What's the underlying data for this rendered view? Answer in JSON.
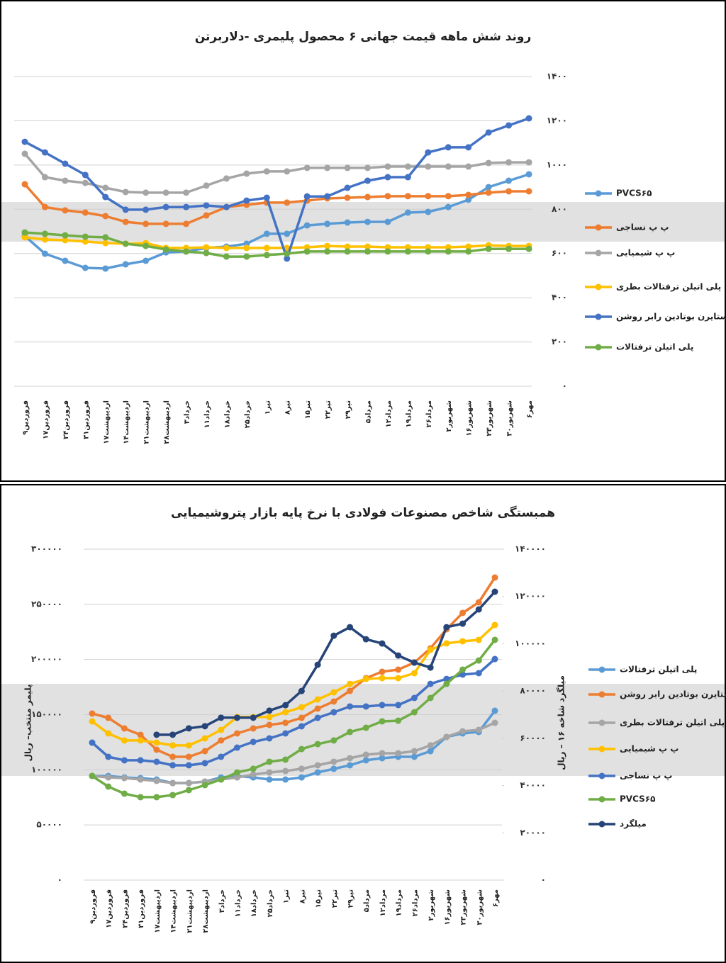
{
  "chart_data": [
    {
      "type": "line",
      "title": "روند شش ماهه قیمت جهانی ۶ محصول پلیمری -دلاربرتن",
      "categories": [
        "۹فروردین",
        "۱۷فروردین",
        "۲۴فروردین",
        "۳۱فروردین",
        "۱۷اردیبهشت",
        "۱۴اردیبهشت",
        "۲۱اردیبهشت",
        "۲۸اردیبهشت",
        "۳خرداد",
        "۱۱خرداد",
        "۱۸خرداد",
        "۲۵خرداد",
        "۱تیر",
        "۸تیر",
        "۱۵تیر",
        "۲۲تیر",
        "۲۹تیر",
        "۵مرداد",
        "۱۲مرداد",
        "۱۹مرداد",
        "۲۶مرداد",
        "۲شهریور",
        "۱۶شهریور",
        "۲۳شهریور",
        "۳۰شهریور",
        "۶مهر"
      ],
      "series": [
        {
          "name": "PVCS۶۵",
          "color": "#5b9bd5",
          "values": [
            679,
            599,
            567,
            535,
            532,
            551,
            567,
            605,
            609,
            625,
            631,
            644,
            689,
            689,
            727,
            734,
            740,
            743,
            743,
            785,
            788,
            810,
            843,
            900,
            929,
            958
          ]
        },
        {
          "name": "پ پ نساجی",
          "color": "#ed7d31",
          "values": [
            913,
            810,
            795,
            785,
            769,
            743,
            734,
            734,
            734,
            772,
            810,
            820,
            830,
            830,
            839,
            849,
            852,
            855,
            859,
            859,
            859,
            859,
            865,
            875,
            881,
            881
          ]
        },
        {
          "name": "پ پ شیمیایی",
          "color": "#a5a5a5",
          "values": [
            1051,
            945,
            929,
            919,
            897,
            878,
            875,
            875,
            875,
            907,
            939,
            961,
            971,
            971,
            987,
            987,
            987,
            987,
            993,
            993,
            993,
            993,
            993,
            1009,
            1012,
            1012
          ]
        },
        {
          "name": "پلی اتیلن ترفتالات بطری",
          "color": "#ffc000",
          "values": [
            673,
            663,
            660,
            654,
            647,
            644,
            647,
            625,
            625,
            628,
            625,
            625,
            625,
            625,
            628,
            634,
            631,
            631,
            628,
            628,
            628,
            628,
            631,
            637,
            634,
            634
          ]
        },
        {
          "name": "استایرن بوتادین رابر روشن",
          "color": "#4472c4",
          "values": [
            1105,
            1057,
            1006,
            955,
            855,
            798,
            798,
            810,
            810,
            817,
            810,
            839,
            852,
            577,
            858,
            858,
            897,
            929,
            945,
            945,
            1057,
            1080,
            1080,
            1147,
            1179,
            1211
          ]
        },
        {
          "name": "پلی اتیلن ترفتالات",
          "color": "#70ad47",
          "values": [
            695,
            689,
            682,
            676,
            673,
            644,
            634,
            618,
            609,
            602,
            586,
            586,
            593,
            599,
            609,
            609,
            609,
            609,
            609,
            609,
            609,
            609,
            609,
            621,
            621,
            621
          ]
        }
      ],
      "ylim": [
        0,
        1400
      ],
      "yticks": [
        {
          "value": 0,
          "label": "۰"
        },
        {
          "value": 200,
          "label": "۲۰۰"
        },
        {
          "value": 400,
          "label": "۴۰۰"
        },
        {
          "value": 600,
          "label": "۶۰۰"
        },
        {
          "value": 800,
          "label": "۸۰۰"
        },
        {
          "value": 1000,
          "label": "۱۰۰۰"
        },
        {
          "value": 1200,
          "label": "۱۲۰۰"
        },
        {
          "value": 1400,
          "label": "۱۴۰۰"
        }
      ],
      "grid": true
    },
    {
      "type": "line",
      "title": "همبستگی شاخص مصنوعات فولادی با نرخ پایه بازار پتروشیمیایی",
      "ylabel": "پلیمر منتخب– ریال",
      "y2label": "میلگرد شاخه ۱۶ – ریال",
      "categories": [
        "۹فروردین",
        "۱۷فروردین",
        "۲۴فروردین",
        "۳۱فروردین",
        "۱۷اردیبهشت",
        "۱۴اردیبهشت",
        "۲۱اردیبهشت",
        "۲۸اردیبهشت",
        "۳خرداد",
        "۱۱خرداد",
        "۱۸خرداد",
        "۲۵خرداد",
        "۱تیر",
        "۸تیر",
        "۱۵تیر",
        "۲۲تیر",
        "۲۹تیر",
        "۵مرداد",
        "۱۲مرداد",
        "۱۹مرداد",
        "۲۶مرداد",
        "۲شهریور",
        "۱۶شهریور",
        "۲۳شهریور",
        "۳۰شهریور",
        "۶مهر"
      ],
      "series": [
        {
          "name": "پلی اتیلن ترفتالات",
          "color": "#5b9bd5",
          "values": [
            94400,
            94400,
            93100,
            92500,
            91200,
            88000,
            88000,
            89300,
            93100,
            94400,
            93100,
            91200,
            91200,
            93100,
            97600,
            100900,
            104100,
            108600,
            110500,
            111800,
            111800,
            116900,
            129800,
            133000,
            134300,
            153500
          ]
        },
        {
          "name": "استایرن بوتادین رابر روشن",
          "color": "#ed7d31",
          "values": [
            151000,
            147100,
            137500,
            131700,
            118200,
            111800,
            111800,
            116900,
            126600,
            133000,
            137500,
            140700,
            142600,
            147100,
            155500,
            161900,
            171500,
            183100,
            188900,
            190800,
            197200,
            210100,
            227400,
            242200,
            251800,
            274300
          ]
        },
        {
          "name": "پلی اتیلن ترفتالات بطری",
          "color": "#a5a5a5",
          "values": [
            94400,
            93100,
            92500,
            91200,
            89900,
            88000,
            88000,
            89300,
            91200,
            93100,
            95700,
            97600,
            98900,
            100900,
            104100,
            107300,
            110500,
            113700,
            115000,
            115000,
            116900,
            122100,
            129800,
            134900,
            136200,
            142600
          ]
        },
        {
          "name": "پ پ شیمیایی",
          "color": "#ffc000",
          "values": [
            143900,
            133000,
            126600,
            126600,
            124600,
            122100,
            122100,
            128500,
            136200,
            147800,
            147800,
            147800,
            152200,
            156700,
            163800,
            170200,
            177900,
            182400,
            183100,
            183100,
            187600,
            208800,
            214600,
            216500,
            217800,
            231300
          ]
        },
        {
          "name": "پ پ نساجی",
          "color": "#4472c4",
          "values": [
            124600,
            111800,
            108600,
            108600,
            107300,
            104100,
            104100,
            106000,
            111800,
            120100,
            125300,
            128500,
            133000,
            139400,
            147100,
            152200,
            157400,
            157400,
            158700,
            158700,
            165100,
            177900,
            182400,
            186300,
            187600,
            200400
          ]
        },
        {
          "name": "PVCS۶۵",
          "color": "#70ad47",
          "values": [
            94400,
            84800,
            78400,
            75200,
            75200,
            77100,
            81600,
            86100,
            91200,
            97600,
            100900,
            107300,
            109200,
            118800,
            123300,
            126600,
            134300,
            138100,
            143900,
            144500,
            152200,
            165100,
            177900,
            190800,
            199100,
            217800
          ]
        },
        {
          "name": "میلگرد",
          "color": "#264478",
          "axis": "y2",
          "values": [
            null,
            null,
            null,
            null,
            61500,
            61500,
            64200,
            65100,
            68700,
            68700,
            68700,
            71700,
            74000,
            80000,
            91100,
            103400,
            107000,
            101900,
            100100,
            95000,
            92000,
            89900,
            107000,
            108500,
            114500,
            122000
          ]
        }
      ],
      "ylim": [
        0,
        300000
      ],
      "yticks": [
        {
          "value": 0,
          "label": "۰"
        },
        {
          "value": 50000,
          "label": "۵۰۰۰۰"
        },
        {
          "value": 100000,
          "label": "۱۰۰۰۰۰"
        },
        {
          "value": 150000,
          "label": "۱۵۰۰۰۰"
        },
        {
          "value": 200000,
          "label": "۲۰۰۰۰۰"
        },
        {
          "value": 250000,
          "label": "۲۵۰۰۰۰"
        },
        {
          "value": 300000,
          "label": "۳۰۰۰۰۰"
        }
      ],
      "y2lim": [
        0,
        140000
      ],
      "y2ticks": [
        {
          "value": 0,
          "label": "۰"
        },
        {
          "value": 20000,
          "label": "۲۰۰۰۰"
        },
        {
          "value": 40000,
          "label": "۴۰۰۰۰"
        },
        {
          "value": 60000,
          "label": "۶۰۰۰۰"
        },
        {
          "value": 80000,
          "label": "۸۰۰۰۰"
        },
        {
          "value": 100000,
          "label": "۱۰۰۰۰۰"
        },
        {
          "value": 120000,
          "label": "۱۲۰۰۰۰"
        },
        {
          "value": 140000,
          "label": "۱۴۰۰۰۰"
        }
      ],
      "grid": true
    }
  ]
}
